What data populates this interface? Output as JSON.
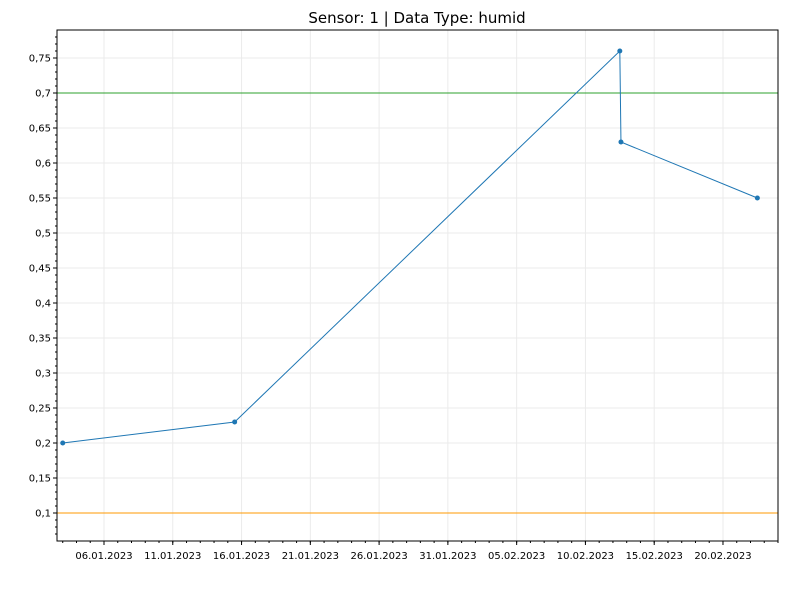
{
  "chart_data": {
    "type": "line",
    "title": "Sensor: 1  |  Data Type: humid",
    "xlabel": "",
    "ylabel": "",
    "x_ticks": [
      "06.01.2023",
      "11.01.2023",
      "16.01.2023",
      "21.01.2023",
      "26.01.2023",
      "31.01.2023",
      "05.02.2023",
      "10.02.2023",
      "15.02.2023",
      "20.02.2023"
    ],
    "y_ticks": [
      "0,1",
      "0,15",
      "0,2",
      "0,25",
      "0,3",
      "0,35",
      "0,4",
      "0,45",
      "0,5",
      "0,55",
      "0,6",
      "0,65",
      "0,7",
      "0,75"
    ],
    "xlim": [
      "2023-01-02T14:00",
      "2023-02-24T00:00"
    ],
    "ylim": [
      0.06,
      0.79
    ],
    "grid": true,
    "series": [
      {
        "color": "#1f77b4",
        "points": [
          {
            "x": "2023-01-03",
            "y": 0.2
          },
          {
            "x": "2023-01-15T12:00",
            "y": 0.23
          },
          {
            "x": "2023-02-12T12:00",
            "y": 0.76
          },
          {
            "x": "2023-02-12T14:00",
            "y": 0.63
          },
          {
            "x": "2023-02-22T12:00",
            "y": 0.55
          }
        ]
      }
    ],
    "thresholds": [
      {
        "y": 0.7,
        "color": "#2ca02c"
      },
      {
        "y": 0.1,
        "color": "#ff9900"
      }
    ]
  }
}
